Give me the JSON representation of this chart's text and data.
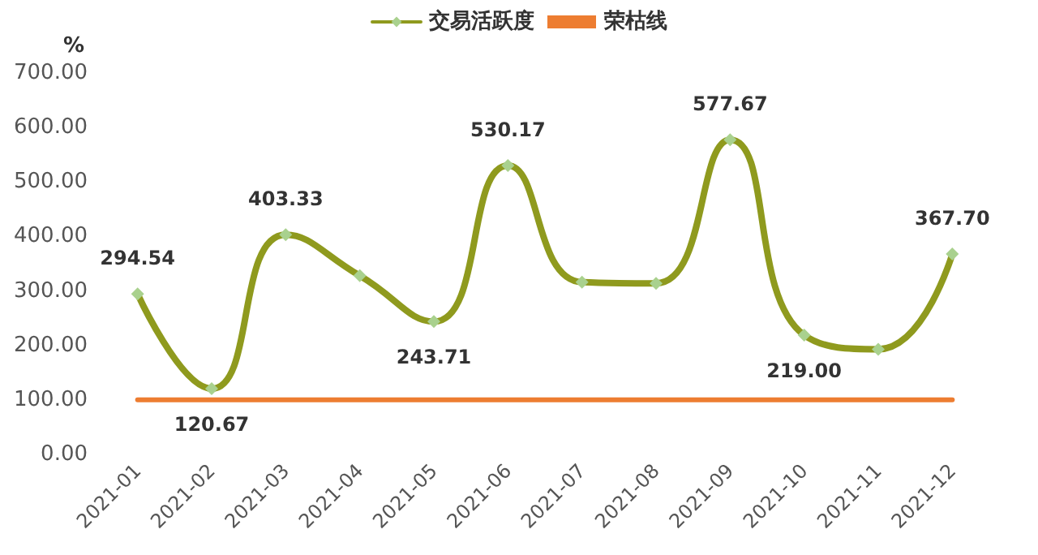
{
  "chart_data": {
    "type": "line",
    "ylabel": "%",
    "categories": [
      "2021-01",
      "2021-02",
      "2021-03",
      "2021-04",
      "2021-05",
      "2021-06",
      "2021-07",
      "2021-08",
      "2021-09",
      "2021-10",
      "2021-11",
      "2021-12"
    ],
    "series": [
      {
        "name": "交易活跃度",
        "color": "#8f9a1e",
        "marker": "diamond",
        "values": [
          294.54,
          120.67,
          403.33,
          328,
          243.71,
          530.17,
          316,
          314,
          577.67,
          219.0,
          193,
          367.7
        ],
        "value_labels": [
          "294.54",
          "120.67",
          "403.33",
          null,
          "243.71",
          "530.17",
          null,
          null,
          "577.67",
          "219.00",
          null,
          "367.70"
        ]
      },
      {
        "name": "荣枯线",
        "color": "#ed7d31",
        "marker": "none",
        "values": [
          100,
          100,
          100,
          100,
          100,
          100,
          100,
          100,
          100,
          100,
          100,
          100
        ]
      }
    ],
    "ylim": [
      0,
      700
    ],
    "yticks": [
      {
        "value": 0,
        "label": "0.00"
      },
      {
        "value": 100,
        "label": "100.00"
      },
      {
        "value": 200,
        "label": "200.00"
      },
      {
        "value": 300,
        "label": "300.00"
      },
      {
        "value": 400,
        "label": "400.00"
      },
      {
        "value": 500,
        "label": "500.00"
      },
      {
        "value": 600,
        "label": "600.00"
      },
      {
        "value": 700,
        "label": "700.00"
      }
    ],
    "grid": false,
    "legend": "top"
  }
}
